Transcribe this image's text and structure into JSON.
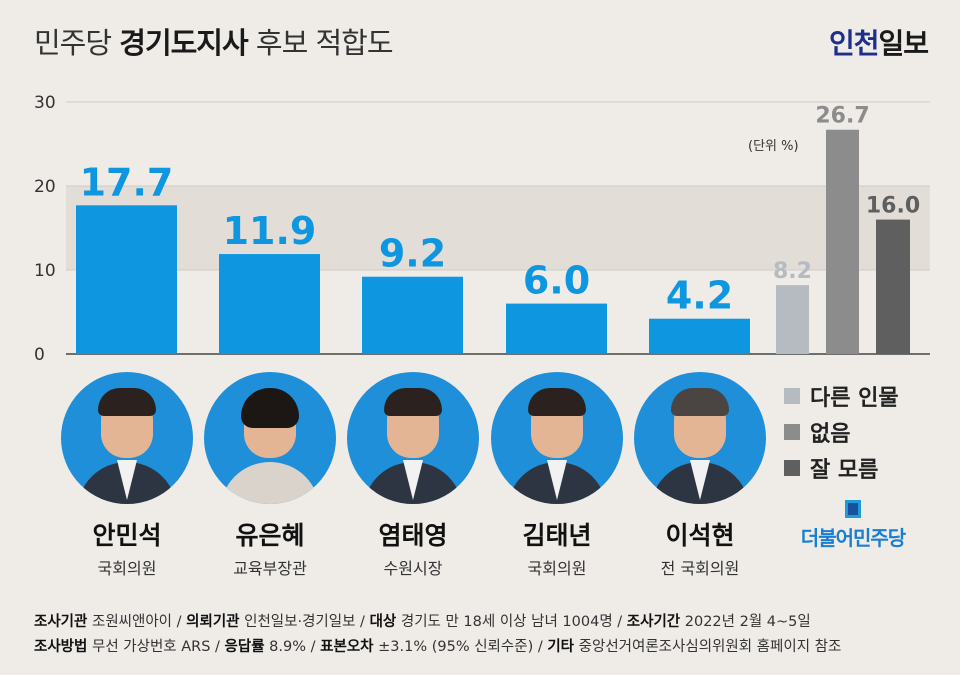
{
  "header": {
    "title_pre": "민주당 ",
    "title_bold": "경기도지사",
    "title_post": " 후보 적합도",
    "brand_a": "인천",
    "brand_b": "일보"
  },
  "unit_label": "(단위 %)",
  "colors": {
    "candidate_bar": "#0e97e0",
    "candidate_label": "#0e97e0",
    "other": "#b6bbc1",
    "none": "#8c8c8c",
    "dontknow": "#5f5f5f",
    "band": "#e2ddd7",
    "axis": "#444444"
  },
  "chart_data": {
    "type": "bar",
    "categories": [
      "안민석",
      "유은혜",
      "염태영",
      "김태년",
      "이석현",
      "다른 인물",
      "없음",
      "잘 모름"
    ],
    "values": [
      17.7,
      11.9,
      9.2,
      6.0,
      4.2,
      8.2,
      26.7,
      16.0
    ],
    "value_labels": [
      "17.7",
      "11.9",
      "9.2",
      "6.0",
      "4.2",
      "8.2",
      "26.7",
      "16.0"
    ],
    "ylim": [
      0,
      30
    ],
    "yticks": [
      "0",
      "10",
      "20",
      "30"
    ],
    "grid": false,
    "legend_position": "right",
    "title": "민주당 경기도지사 후보 적합도"
  },
  "legend": [
    {
      "label": "다른 인물",
      "color": "#b6bbc1",
      "icon": "gray-square"
    },
    {
      "label": "없음",
      "color": "#8c8c8c",
      "icon": "gray-square"
    },
    {
      "label": "잘 모름",
      "color": "#5f5f5f",
      "icon": "gray-square"
    }
  ],
  "candidates": [
    {
      "name": "안민석",
      "role": "국회의원"
    },
    {
      "name": "유은혜",
      "role": "교육부장관"
    },
    {
      "name": "염태영",
      "role": "수원시장"
    },
    {
      "name": "김태년",
      "role": "국회의원"
    },
    {
      "name": "이석현",
      "role": "전 국회의원"
    }
  ],
  "party": {
    "name": "더불어민주당",
    "icon": "party-flag-icon"
  },
  "footer": {
    "line1": [
      {
        "label": "조사기관",
        "value": " 조원씨앤아이 / "
      },
      {
        "label": "의뢰기관",
        "value": " 인천일보·경기일보 / "
      },
      {
        "label": "대상",
        "value": " 경기도 만 18세 이상 남녀 1004명 / "
      },
      {
        "label": "조사기간",
        "value": " 2022년 2월 4~5일"
      }
    ],
    "line2": [
      {
        "label": "조사방법",
        "value": " 무선 가상번호 ARS / "
      },
      {
        "label": "응답률",
        "value": " 8.9% / "
      },
      {
        "label": "표본오차",
        "value": " ±3.1% (95% 신뢰수준) / "
      },
      {
        "label": "기타",
        "value": " 중앙선거여론조사심의위원회 홈페이지 참조"
      }
    ]
  }
}
